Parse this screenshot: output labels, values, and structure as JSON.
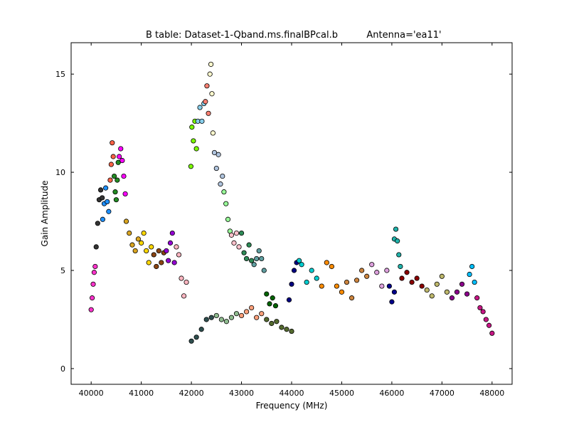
{
  "chart_data": {
    "type": "scatter",
    "title": "B table: Dataset-1-Qband.ms.finalBPcal.b",
    "subtitle": "Antenna='ea11'",
    "xlabel": "Frequency (MHz)",
    "ylabel": "Gain Amplitude",
    "xlim": [
      39600,
      48400
    ],
    "ylim": [
      -0.8,
      16.6
    ],
    "xticks": [
      40000,
      41000,
      42000,
      43000,
      44000,
      45000,
      46000,
      47000,
      48000
    ],
    "xtick_labels": [
      "40000",
      "41000",
      "42000",
      "43000",
      "44000",
      "45000",
      "46000",
      "47000",
      "48000"
    ],
    "yticks": [
      0,
      5,
      10,
      15
    ],
    "ytick_labels": [
      "0",
      "5",
      "10",
      "15"
    ],
    "grid": false,
    "marker": "circle",
    "series": [
      {
        "color": "#ff33cc",
        "x": [
          40000,
          40020,
          40040,
          40060,
          40080
        ],
        "y": [
          3.0,
          3.6,
          4.3,
          4.9,
          5.2
        ]
      },
      {
        "color": "#333333",
        "x": [
          40100,
          40130,
          40160,
          40190,
          40220
        ],
        "y": [
          6.2,
          7.4,
          8.6,
          9.1,
          8.7
        ]
      },
      {
        "color": "#1e90ff",
        "x": [
          40230,
          40260,
          40290,
          40320,
          40350
        ],
        "y": [
          7.6,
          8.4,
          9.2,
          8.5,
          8.0
        ]
      },
      {
        "color": "#ff6347",
        "x": [
          40380,
          40400,
          40420,
          40440
        ],
        "y": [
          9.6,
          10.4,
          11.5,
          10.8
        ]
      },
      {
        "color": "#228b22",
        "x": [
          40460,
          40480,
          40500,
          40520,
          40540
        ],
        "y": [
          9.8,
          9.0,
          8.6,
          9.6,
          10.5
        ]
      },
      {
        "color": "#ff00ff",
        "x": [
          40560,
          40590,
          40620,
          40650,
          40680
        ],
        "y": [
          10.8,
          11.2,
          10.6,
          9.8,
          8.9
        ]
      },
      {
        "color": "#daa520",
        "x": [
          40700,
          40760,
          40820,
          40880,
          40940
        ],
        "y": [
          7.5,
          6.9,
          6.3,
          6.0,
          6.6
        ]
      },
      {
        "color": "#ffd700",
        "x": [
          41000,
          41050,
          41100,
          41150,
          41200
        ],
        "y": [
          6.4,
          6.9,
          6.0,
          5.4,
          6.2
        ]
      },
      {
        "color": "#8b4513",
        "x": [
          41250,
          41300,
          41350,
          41400,
          41450
        ],
        "y": [
          5.8,
          5.2,
          6.0,
          5.4,
          5.9
        ]
      },
      {
        "color": "#9400d3",
        "x": [
          41500,
          41540,
          41580,
          41620,
          41660
        ],
        "y": [
          6.0,
          5.5,
          6.4,
          6.9,
          5.4
        ]
      },
      {
        "color": "#ffb6c1",
        "x": [
          41700,
          41750,
          41800,
          41850,
          41900
        ],
        "y": [
          6.2,
          5.8,
          4.6,
          3.7,
          4.4
        ]
      },
      {
        "color": "#7cfc00",
        "x": [
          41990,
          42010,
          42040,
          42070,
          42100
        ],
        "y": [
          10.3,
          12.3,
          11.6,
          12.6,
          11.2
        ]
      },
      {
        "color": "#87ceeb",
        "x": [
          42130,
          42170,
          42210,
          42250
        ],
        "y": [
          12.6,
          13.3,
          12.6,
          13.5
        ]
      },
      {
        "color": "#fa8072",
        "x": [
          42280,
          42310,
          42340
        ],
        "y": [
          13.6,
          14.4,
          13.0
        ]
      },
      {
        "color": "#fffacd",
        "x": [
          42370,
          42390,
          42410,
          42430
        ],
        "y": [
          15.0,
          15.5,
          14.0,
          12.0
        ]
      },
      {
        "color": "#b0c4de",
        "x": [
          42460,
          42500,
          42540,
          42580,
          42620
        ],
        "y": [
          11.0,
          10.2,
          10.9,
          9.4,
          9.8
        ]
      },
      {
        "color": "#98fb98",
        "x": [
          42650,
          42690,
          42730,
          42770
        ],
        "y": [
          9.0,
          8.4,
          7.6,
          7.0
        ]
      },
      {
        "color": "#ffc0cb",
        "x": [
          42800,
          42850,
          42900,
          42950
        ],
        "y": [
          6.8,
          6.4,
          6.9,
          6.2
        ]
      },
      {
        "color": "#2e8b57",
        "x": [
          43000,
          43050,
          43100,
          43150,
          43200
        ],
        "y": [
          6.9,
          5.9,
          5.6,
          6.3,
          5.5
        ]
      },
      {
        "color": "#5f9ea0",
        "x": [
          43250,
          43300,
          43350,
          43400,
          43450
        ],
        "y": [
          5.3,
          5.6,
          6.0,
          5.6,
          5.0
        ]
      },
      {
        "color": "#006400",
        "x": [
          43500,
          43560,
          43620,
          43680
        ],
        "y": [
          3.8,
          3.3,
          3.6,
          3.2
        ]
      },
      {
        "color": "#2f4f4f",
        "x": [
          42000,
          42100,
          42200,
          42300,
          42400
        ],
        "y": [
          1.4,
          1.6,
          2.0,
          2.5,
          2.6
        ]
      },
      {
        "color": "#8fbc8f",
        "x": [
          42500,
          42600,
          42700,
          42800,
          42900
        ],
        "y": [
          2.7,
          2.5,
          2.4,
          2.6,
          2.8
        ]
      },
      {
        "color": "#ffa07a",
        "x": [
          43000,
          43100,
          43200,
          43300,
          43400
        ],
        "y": [
          2.7,
          2.9,
          3.1,
          2.6,
          2.8
        ]
      },
      {
        "color": "#556b2f",
        "x": [
          43500,
          43600,
          43700,
          43800,
          43900,
          44000
        ],
        "y": [
          2.5,
          2.3,
          2.4,
          2.1,
          2.0,
          1.9
        ]
      },
      {
        "color": "#000080",
        "x": [
          43950,
          44000,
          44050,
          44100
        ],
        "y": [
          3.5,
          4.3,
          5.0,
          5.4
        ]
      },
      {
        "color": "#00ced1",
        "x": [
          44150,
          44200,
          44300,
          44400,
          44500
        ],
        "y": [
          5.5,
          5.3,
          4.4,
          5.0,
          4.6
        ]
      },
      {
        "color": "#ff8c00",
        "x": [
          44600,
          44700,
          44800,
          44900,
          45000
        ],
        "y": [
          4.2,
          5.4,
          5.2,
          4.2,
          3.9
        ]
      },
      {
        "color": "#cd853f",
        "x": [
          45100,
          45200,
          45300,
          45400,
          45500
        ],
        "y": [
          4.4,
          3.6,
          4.5,
          5.0,
          4.7
        ]
      },
      {
        "color": "#dda0dd",
        "x": [
          45600,
          45700,
          45800,
          45900
        ],
        "y": [
          5.3,
          4.9,
          4.2,
          5.0
        ]
      },
      {
        "color": "#00008b",
        "x": [
          45950,
          46000,
          46050
        ],
        "y": [
          4.2,
          3.4,
          3.9
        ]
      },
      {
        "color": "#20b2aa",
        "x": [
          46050,
          46080,
          46110,
          46140,
          46170
        ],
        "y": [
          6.6,
          7.1,
          6.5,
          5.8,
          5.2
        ]
      },
      {
        "color": "#8b0000",
        "x": [
          46200,
          46300,
          46400,
          46500,
          46600
        ],
        "y": [
          4.6,
          4.9,
          4.4,
          4.6,
          4.2
        ]
      },
      {
        "color": "#bdb76b",
        "x": [
          46700,
          46800,
          46900,
          47000,
          47100
        ],
        "y": [
          4.0,
          3.7,
          4.3,
          4.7,
          3.9
        ]
      },
      {
        "color": "#8b008b",
        "x": [
          47200,
          47300,
          47400,
          47500
        ],
        "y": [
          3.6,
          3.9,
          4.3,
          3.8
        ]
      },
      {
        "color": "#00bfff",
        "x": [
          47550,
          47600,
          47650
        ],
        "y": [
          4.8,
          5.2,
          4.4
        ]
      },
      {
        "color": "#c71585",
        "x": [
          47700,
          47760,
          47820,
          47880,
          47940,
          48000
        ],
        "y": [
          3.6,
          3.1,
          2.9,
          2.5,
          2.2,
          1.8
        ]
      }
    ]
  }
}
